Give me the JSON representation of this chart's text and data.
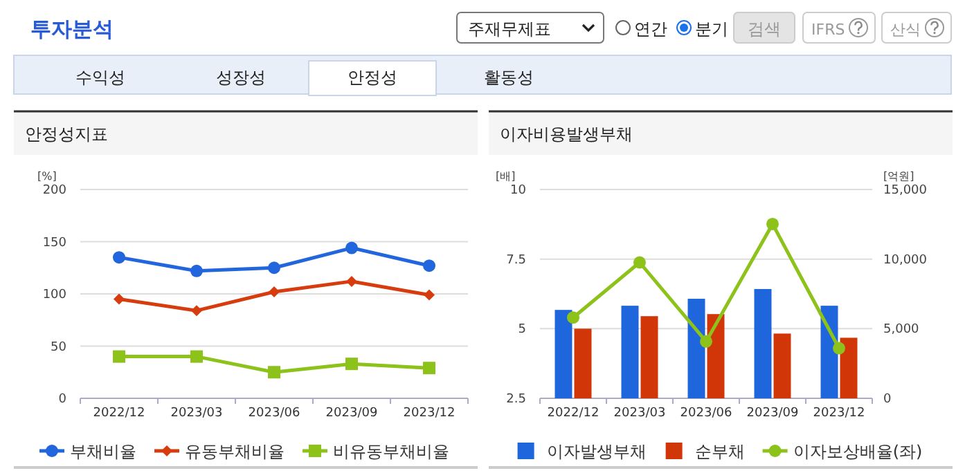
{
  "chart_data": [
    {
      "type": "other",
      "title": "투자분석",
      "annotations": [
        "주재무제표",
        "연간",
        "분기",
        "검색",
        "IFRS",
        "산식",
        "수익성",
        "성장성",
        "안정성",
        "활동성"
      ]
    },
    {
      "type": "line",
      "title": "안정성지표",
      "ylabel": "[%]",
      "categories": [
        "2022/12",
        "2023/03",
        "2023/06",
        "2023/09",
        "2023/12"
      ],
      "ylim": [
        0,
        200
      ],
      "yticks": [
        0,
        50,
        100,
        150,
        200
      ],
      "grid": "y",
      "legend": "bottom",
      "series": [
        {
          "name": "부채비율",
          "color": "#2266dd",
          "marker": "circle",
          "values": [
            135,
            122,
            125,
            144,
            127
          ]
        },
        {
          "name": "유동부채비율",
          "color": "#d63c0e",
          "marker": "diamond",
          "values": [
            95,
            84,
            102,
            112,
            99
          ]
        },
        {
          "name": "비유동부채비율",
          "color": "#8cc21a",
          "marker": "square",
          "values": [
            40,
            40,
            25,
            33,
            29
          ]
        }
      ]
    },
    {
      "type": "bar",
      "title": "이자비용발생부채",
      "ylabel": "[배]",
      "y2label": "[억원]",
      "categories": [
        "2022/12",
        "2023/03",
        "2023/06",
        "2023/09",
        "2023/12"
      ],
      "ylim": [
        2.5,
        10
      ],
      "yticks": [
        2.5,
        5,
        7.5,
        10
      ],
      "y2lim": [
        0,
        15000
      ],
      "y2ticks": [
        0,
        {
          "value": 5000,
          "label": "5,000"
        },
        {
          "value": 10000,
          "label": "10,000"
        },
        {
          "value": 15000,
          "label": "15,000"
        }
      ],
      "grid": "y",
      "legend": "bottom",
      "series": [
        {
          "name": "이자발생부채",
          "color": "#1f66dd",
          "axis": "y2",
          "values": [
            6350,
            6650,
            7150,
            7850,
            6650
          ]
        },
        {
          "name": "순부채",
          "color": "#d13609",
          "axis": "y2",
          "values": [
            5000,
            5900,
            6050,
            4650,
            4350
          ]
        },
        {
          "name": "이자보상배율(좌)",
          "type": "line",
          "color": "#8cc21a",
          "marker": "circle",
          "axis": "y",
          "values": [
            5.4,
            7.38,
            4.54,
            8.76,
            4.3
          ]
        }
      ]
    }
  ]
}
